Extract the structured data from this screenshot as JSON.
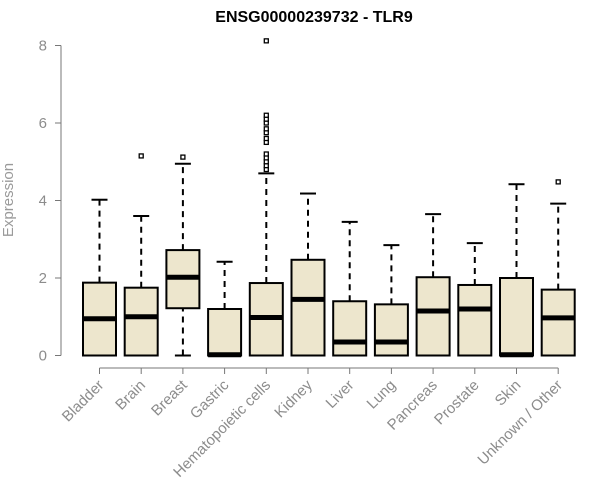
{
  "chart_data": {
    "type": "box",
    "title": "ENSG00000239732 - TLR9",
    "xlabel": "",
    "ylabel": "Expression",
    "ylim": [
      0,
      8.2
    ],
    "yticks": [
      0,
      2,
      4,
      6,
      8
    ],
    "grid": false,
    "box_color": "#ede6cd",
    "categories": [
      "Bladder",
      "Brain",
      "Breast",
      "Gastric",
      "Hematopoietic cells",
      "Kidney",
      "Liver",
      "Lung",
      "Pancreas",
      "Prostate",
      "Skin",
      "Unknown / Other"
    ],
    "boxes": [
      {
        "whisker_low": 0,
        "q1": 0,
        "median": 0.95,
        "q3": 1.88,
        "whisker_high": 4.02,
        "outliers": []
      },
      {
        "whisker_low": 0,
        "q1": 0,
        "median": 1.0,
        "q3": 1.75,
        "whisker_high": 3.6,
        "outliers": [
          5.15
        ]
      },
      {
        "whisker_low": 0,
        "q1": 1.22,
        "median": 2.02,
        "q3": 2.72,
        "whisker_high": 4.95,
        "outliers": [
          5.12
        ]
      },
      {
        "whisker_low": 0,
        "q1": 0,
        "median": 0.02,
        "q3": 1.2,
        "whisker_high": 2.42,
        "outliers": []
      },
      {
        "whisker_low": 0,
        "q1": 0,
        "median": 0.98,
        "q3": 1.87,
        "whisker_high": 4.7,
        "outliers": [
          4.8,
          4.9,
          5.0,
          5.1,
          5.2,
          5.5,
          5.6,
          5.75,
          5.85,
          6.0,
          6.1,
          6.2,
          8.12
        ]
      },
      {
        "whisker_low": 0,
        "q1": 0,
        "median": 1.45,
        "q3": 2.47,
        "whisker_high": 4.18,
        "outliers": []
      },
      {
        "whisker_low": 0,
        "q1": 0,
        "median": 0.35,
        "q3": 1.4,
        "whisker_high": 3.45,
        "outliers": []
      },
      {
        "whisker_low": 0,
        "q1": 0,
        "median": 0.35,
        "q3": 1.32,
        "whisker_high": 2.85,
        "outliers": []
      },
      {
        "whisker_low": 0,
        "q1": 0,
        "median": 1.15,
        "q3": 2.02,
        "whisker_high": 3.65,
        "outliers": []
      },
      {
        "whisker_low": 0,
        "q1": 0,
        "median": 1.2,
        "q3": 1.82,
        "whisker_high": 2.9,
        "outliers": []
      },
      {
        "whisker_low": 0,
        "q1": 0,
        "median": 0.02,
        "q3": 2.0,
        "whisker_high": 4.42,
        "outliers": []
      },
      {
        "whisker_low": 0,
        "q1": 0,
        "median": 0.97,
        "q3": 1.7,
        "whisker_high": 3.92,
        "outliers": [
          4.48
        ]
      }
    ]
  }
}
